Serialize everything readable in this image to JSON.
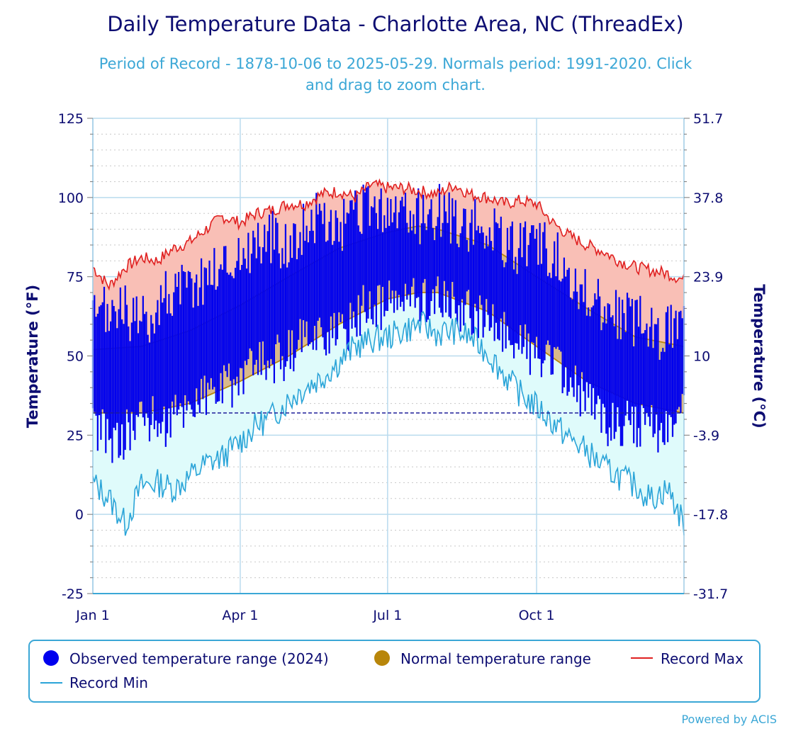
{
  "chart_data": {
    "type": "area",
    "title": "Daily Temperature Data - Charlotte Area, NC (ThreadEx)",
    "subtitle_lines": [
      "Period of Record - 1878-10-06 to 2025-05-29. Normals period: 1991-2020. Click",
      "and drag to zoom chart."
    ],
    "ylabel": "Temperature (°F)",
    "ylabel_right": "Temperature (°C)",
    "ylim": [
      -25,
      125
    ],
    "y_ticks": [
      125,
      100,
      75,
      50,
      25,
      0,
      -25
    ],
    "y_ticks_right": [
      "51.7",
      "37.8",
      "23.9",
      "10",
      "-3.9",
      "-17.8",
      "-31.7"
    ],
    "x_ticks": [
      {
        "day": 0,
        "label": "Jan 1"
      },
      {
        "day": 91,
        "label": "Apr 1"
      },
      {
        "day": 182,
        "label": "Jul 1"
      },
      {
        "day": 274,
        "label": "Oct 1"
      }
    ],
    "x_range": [
      0,
      365
    ],
    "grid": true,
    "freezing_line": 32,
    "legend": {
      "position": "bottom",
      "entries": [
        {
          "name": "Observed temperature range (2024)",
          "marker": "circle",
          "color": "#0000ee"
        },
        {
          "name": "Normal temperature range",
          "marker": "circle",
          "color": "#b8860b"
        },
        {
          "name": "Record Max",
          "marker": "line",
          "color": "#e02020"
        },
        {
          "name": "Record Min",
          "marker": "line",
          "color": "#2aa4d8"
        }
      ]
    },
    "credit": "Powered by ACIS",
    "colors": {
      "observed": "#0000ee",
      "normal_fill": "#d9b98a",
      "normal_line": "#b8860b",
      "record_max_line": "#e02020",
      "record_max_fill": "#f9bfb6",
      "record_min_line": "#2aa4d8",
      "record_min_fill": "#dffbfb",
      "grid": "#b9dbee",
      "freezing": "#1e1e9a",
      "legend_border": "#3ba7d6"
    },
    "normal_range": {
      "day": [
        0,
        30,
        60,
        91,
        121,
        152,
        182,
        201,
        213,
        244,
        274,
        305,
        335,
        365
      ],
      "high": [
        52,
        53,
        58,
        66,
        75,
        84,
        89,
        91,
        90,
        85,
        75,
        65,
        56,
        53
      ],
      "low": [
        32,
        32,
        35,
        42,
        50,
        60,
        68,
        70,
        70,
        64,
        53,
        42,
        35,
        32
      ]
    },
    "record_max": {
      "day": [
        0,
        10,
        20,
        30,
        40,
        50,
        60,
        70,
        80,
        91,
        101,
        111,
        121,
        131,
        141,
        152,
        162,
        172,
        182,
        192,
        202,
        213,
        223,
        233,
        244,
        254,
        264,
        274,
        284,
        294,
        305,
        315,
        325,
        335,
        345,
        355,
        365
      ],
      "value": [
        78,
        72,
        78,
        81,
        80,
        84,
        86,
        90,
        94,
        92,
        95,
        96,
        98,
        98,
        101,
        102,
        100,
        104,
        103,
        103,
        102,
        101,
        104,
        101,
        100,
        98,
        99,
        98,
        92,
        88,
        85,
        83,
        80,
        78,
        77,
        76,
        74
      ]
    },
    "record_min": {
      "day": [
        0,
        10,
        20,
        30,
        40,
        50,
        60,
        70,
        80,
        91,
        101,
        111,
        121,
        131,
        141,
        152,
        162,
        172,
        182,
        192,
        202,
        213,
        223,
        233,
        244,
        254,
        264,
        274,
        284,
        294,
        305,
        315,
        325,
        335,
        345,
        355,
        365
      ],
      "value": [
        10,
        5,
        -3,
        9,
        10,
        8,
        12,
        16,
        18,
        23,
        28,
        31,
        36,
        40,
        43,
        48,
        53,
        55,
        56,
        58,
        60,
        57,
        58,
        56,
        51,
        44,
        38,
        34,
        29,
        24,
        20,
        15,
        12,
        9,
        5,
        8,
        -3
      ]
    },
    "observed_summary": {
      "year": 2024,
      "anchors_day": [
        0,
        15,
        30,
        45,
        60,
        75,
        91,
        106,
        121,
        136,
        152,
        167,
        182,
        197,
        213,
        228,
        244,
        259,
        274,
        289,
        305,
        320,
        335,
        350,
        365
      ],
      "approx_high": [
        57,
        62,
        56,
        66,
        68,
        74,
        78,
        84,
        82,
        90,
        86,
        92,
        92,
        90,
        92,
        88,
        86,
        80,
        82,
        76,
        66,
        60,
        58,
        54,
        60
      ],
      "approx_low": [
        30,
        24,
        33,
        30,
        37,
        40,
        44,
        50,
        52,
        60,
        58,
        66,
        68,
        70,
        70,
        66,
        62,
        58,
        52,
        46,
        38,
        30,
        30,
        28,
        34
      ]
    }
  }
}
